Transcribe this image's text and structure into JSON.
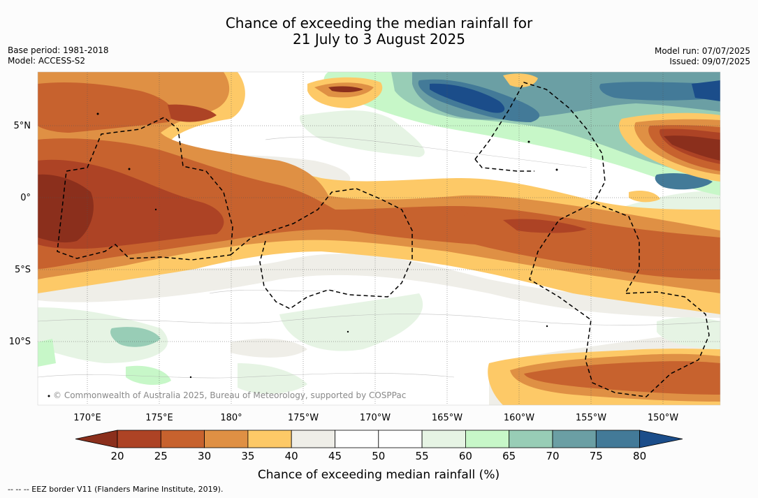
{
  "title_line1": "Chance of exceeding the median rainfall for",
  "title_line2": "21 July to 3 August 2025",
  "meta_left": [
    "Base period: 1981-2018",
    "Model: ACCESS-S2"
  ],
  "meta_right": [
    "Model run: 07/07/2025",
    "Issued: 09/07/2025"
  ],
  "map": {
    "lat_labels": [
      "5°N",
      "0°",
      "5°S",
      "10°S"
    ],
    "lon_labels": [
      "170°E",
      "175°E",
      "180°",
      "175°W",
      "170°W",
      "165°W",
      "160°W",
      "155°W",
      "150°W"
    ],
    "copyright": "© Commonwealth of Australia 2025, Bureau of Meteorology, supported by COSPPac",
    "pattern": "Dry (below 40%) band across the equator from 170°E to 155°W and in the north-west; wet (above 60%) areas north of 3°N east of 170°W; mostly neutral south of 5°S with a dry patch near 12°S 160°W–150°W"
  },
  "colorbar": {
    "ticks": [
      "20",
      "25",
      "30",
      "35",
      "40",
      "45",
      "50",
      "55",
      "60",
      "65",
      "70",
      "75",
      "80"
    ],
    "colors": [
      "#8b2f1c",
      "#ad4325",
      "#c7622e",
      "#df9044",
      "#fdc967",
      "#efeee8",
      "#ffffff",
      "#ffffff",
      "#e6f4e4",
      "#c7f7c8",
      "#98cdb6",
      "#6b9fa4",
      "#437a98",
      "#1b4d8a"
    ],
    "label": "Chance of exceeding median rainfall (%)"
  },
  "footer": "--  --  -- EEZ border V11 (Flanders Marine Institute, 2019)."
}
